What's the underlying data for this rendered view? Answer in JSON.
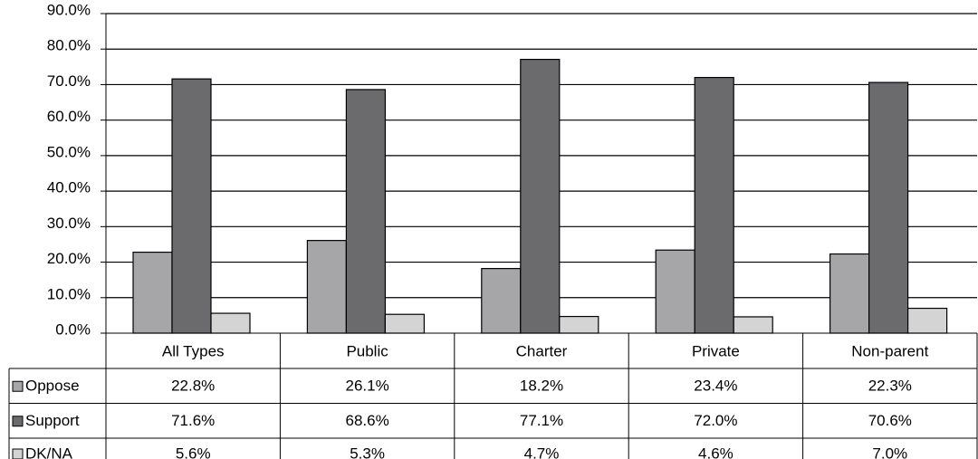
{
  "chart_data": {
    "type": "bar",
    "categories": [
      "All Types",
      "Public",
      "Charter",
      "Private",
      "Non-parent"
    ],
    "series": [
      {
        "name": "Oppose",
        "color": "#a6a6a8",
        "values": [
          22.8,
          26.1,
          18.2,
          23.4,
          22.3
        ],
        "value_labels": [
          "22.8%",
          "26.1%",
          "18.2%",
          "23.4%",
          "22.3%"
        ]
      },
      {
        "name": "Support",
        "color": "#6b6b6e",
        "values": [
          71.6,
          68.6,
          77.1,
          72.0,
          70.6
        ],
        "value_labels": [
          "71.6%",
          "68.6%",
          "77.1%",
          "72.0%",
          "70.6%"
        ]
      },
      {
        "name": "DK/NA",
        "color": "#d4d4d4",
        "values": [
          5.6,
          5.3,
          4.7,
          4.6,
          7.0
        ],
        "value_labels": [
          "5.6%",
          "5.3%",
          "4.7%",
          "4.6%",
          "7.0%"
        ]
      }
    ],
    "ylim": [
      0,
      90
    ],
    "yticks": [
      {
        "value": 0,
        "label": "0.0%"
      },
      {
        "value": 10,
        "label": "10.0%"
      },
      {
        "value": 20,
        "label": "20.0%"
      },
      {
        "value": 30,
        "label": "30.0%"
      },
      {
        "value": 40,
        "label": "40.0%"
      },
      {
        "value": 50,
        "label": "50.0%"
      },
      {
        "value": 60,
        "label": "60.0%"
      },
      {
        "value": 70,
        "label": "70.0%"
      },
      {
        "value": 80,
        "label": "80.0%"
      },
      {
        "value": 90,
        "label": "90.0%"
      }
    ],
    "grid": true
  }
}
